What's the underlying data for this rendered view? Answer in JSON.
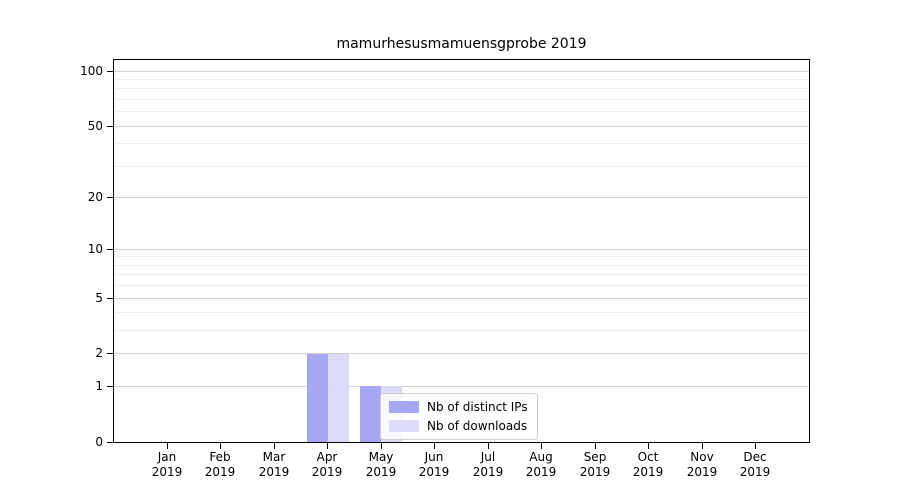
{
  "chart_data": {
    "type": "bar",
    "title": "mamurhesusmamuensgprobe 2019",
    "categories": [
      "Jan",
      "Feb",
      "Mar",
      "Apr",
      "May",
      "Jun",
      "Jul",
      "Aug",
      "Sep",
      "Oct",
      "Nov",
      "Dec"
    ],
    "tick_year": "2019",
    "series": [
      {
        "name": "Nb of distinct IPs",
        "color": "#a6a6f2",
        "values": [
          0,
          0,
          0,
          2,
          1,
          0,
          0,
          0,
          0,
          0,
          0,
          0
        ]
      },
      {
        "name": "Nb of downloads",
        "color": "#dcdcf8",
        "values": [
          0,
          0,
          0,
          2,
          1,
          0,
          0,
          0,
          0,
          0,
          0,
          0
        ]
      }
    ],
    "yscale": "log1p",
    "ylim": [
      0,
      115
    ],
    "ytick_values": [
      0,
      1,
      2,
      5,
      10,
      20,
      50,
      100
    ],
    "ytick_labels": [
      "0",
      "1",
      "2",
      "5",
      "10",
      "20",
      "50",
      "100"
    ],
    "minor_ytick_values": [
      3,
      4,
      6,
      7,
      8,
      9,
      30,
      40,
      60,
      70,
      80,
      90
    ],
    "grid": true,
    "legend_position": "lower center"
  },
  "colors": {
    "grid_major": "#d2d2d2",
    "grid_minor": "#ededed",
    "spine": "#000000",
    "text": "#000000",
    "legend_border": "#cccccc"
  }
}
